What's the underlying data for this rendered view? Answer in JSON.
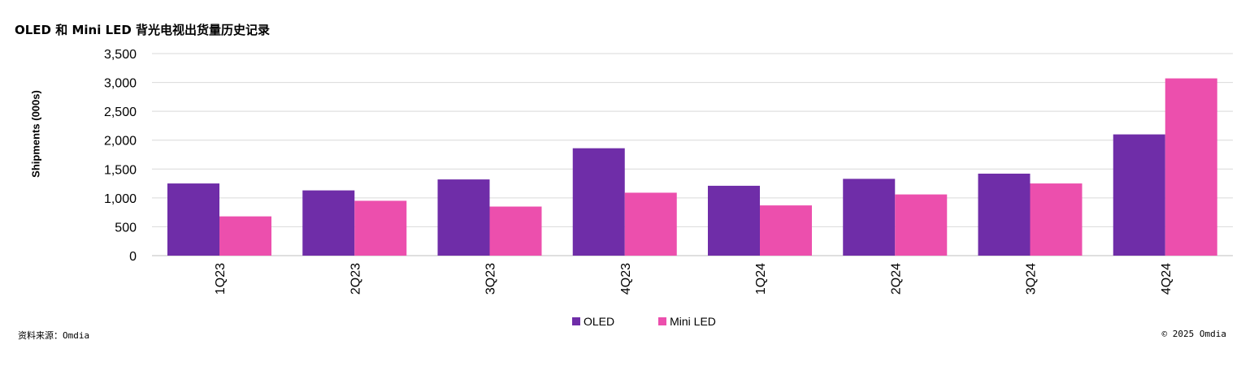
{
  "title": "OLED 和 Mini LED 背光电视出货量历史记录",
  "source": "资料来源：Omdia",
  "copyright": "© 2025 Omdia",
  "colors": {
    "OLED": "#6f2da8",
    "Mini LED": "#ec4fad",
    "grid": "#d9d9d9",
    "axis": "#bfbfbf"
  },
  "chart_data": {
    "type": "bar",
    "title": "OLED 和 Mini LED 背光电视出货量历史记录",
    "xlabel": "",
    "ylabel": "Shipments (000s)",
    "ylim": [
      0,
      3500
    ],
    "yticks": [
      0,
      500,
      1000,
      1500,
      2000,
      2500,
      3000,
      3500
    ],
    "ytick_labels": [
      "0",
      "500",
      "1,000",
      "1,500",
      "2,000",
      "2,500",
      "3,000",
      "3,500"
    ],
    "categories": [
      "1Q23",
      "2Q23",
      "3Q23",
      "4Q23",
      "1Q24",
      "2Q24",
      "3Q24",
      "4Q24"
    ],
    "series": [
      {
        "name": "OLED",
        "values": [
          1250,
          1130,
          1320,
          1860,
          1210,
          1330,
          1420,
          2100
        ]
      },
      {
        "name": "Mini LED",
        "values": [
          680,
          950,
          850,
          1090,
          870,
          1060,
          1250,
          3070
        ]
      }
    ],
    "grid": true,
    "legend_position": "bottom-center"
  }
}
